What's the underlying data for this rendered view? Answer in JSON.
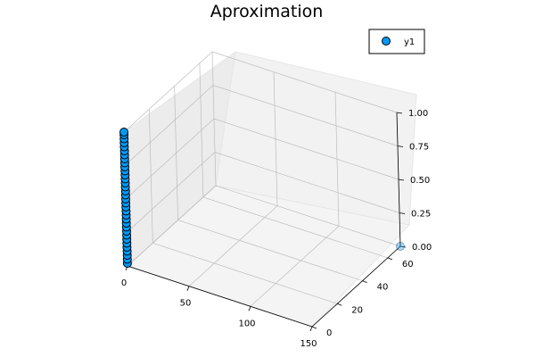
{
  "chart_data": {
    "type": "scatter",
    "dimensions": 3,
    "title": "Aproximation",
    "xlabel": "",
    "ylabel": "",
    "zlabel": "",
    "xlim": [
      0,
      150
    ],
    "ylim": [
      0,
      70
    ],
    "zlim": [
      0,
      1
    ],
    "x_ticks": [
      "0",
      "50",
      "100",
      "150"
    ],
    "y_ticks": [
      "0",
      "20",
      "40",
      "60"
    ],
    "z_ticks": [
      "0.00",
      "0.25",
      "0.50",
      "0.75",
      "1.00"
    ],
    "grid": true,
    "legend_position": "top-right",
    "series": [
      {
        "name": "y1",
        "color": "#009af9",
        "stroke": "#000000",
        "points": [
          {
            "x": 0,
            "y": 0,
            "z": 0.02
          },
          {
            "x": 0,
            "y": 0,
            "z": 0.05
          },
          {
            "x": 0,
            "y": 0,
            "z": 0.08
          },
          {
            "x": 0,
            "y": 0,
            "z": 0.11
          },
          {
            "x": 0,
            "y": 0,
            "z": 0.14
          },
          {
            "x": 0,
            "y": 0,
            "z": 0.17
          },
          {
            "x": 0,
            "y": 0,
            "z": 0.2
          },
          {
            "x": 0,
            "y": 0,
            "z": 0.23
          },
          {
            "x": 0,
            "y": 0,
            "z": 0.26
          },
          {
            "x": 0,
            "y": 0,
            "z": 0.29
          },
          {
            "x": 0,
            "y": 0,
            "z": 0.32
          },
          {
            "x": 0,
            "y": 0,
            "z": 0.35
          },
          {
            "x": 0,
            "y": 0,
            "z": 0.38
          },
          {
            "x": 0,
            "y": 0,
            "z": 0.41
          },
          {
            "x": 0,
            "y": 0,
            "z": 0.44
          },
          {
            "x": 0,
            "y": 0,
            "z": 0.47
          },
          {
            "x": 0,
            "y": 0,
            "z": 0.5
          },
          {
            "x": 0,
            "y": 0,
            "z": 0.53
          },
          {
            "x": 0,
            "y": 0,
            "z": 0.56
          },
          {
            "x": 0,
            "y": 0,
            "z": 0.59
          },
          {
            "x": 0,
            "y": 0,
            "z": 0.62
          },
          {
            "x": 0,
            "y": 0,
            "z": 0.65
          },
          {
            "x": 0,
            "y": 0,
            "z": 0.68
          },
          {
            "x": 0,
            "y": 0,
            "z": 0.71
          },
          {
            "x": 0,
            "y": 0,
            "z": 0.74
          },
          {
            "x": 0,
            "y": 0,
            "z": 0.77
          },
          {
            "x": 0,
            "y": 0,
            "z": 0.8
          },
          {
            "x": 0,
            "y": 0,
            "z": 0.83
          },
          {
            "x": 0,
            "y": 0,
            "z": 0.86
          },
          {
            "x": 0,
            "y": 0,
            "z": 0.89
          },
          {
            "x": 0,
            "y": 0,
            "z": 0.92
          },
          {
            "x": 0,
            "y": 0,
            "z": 0.95
          },
          {
            "x": 0,
            "y": 0,
            "z": 0.98
          },
          {
            "x": 0,
            "y": 0,
            "z": 1.0
          },
          {
            "x": 150,
            "y": 70,
            "z": 0.0
          }
        ]
      }
    ]
  }
}
